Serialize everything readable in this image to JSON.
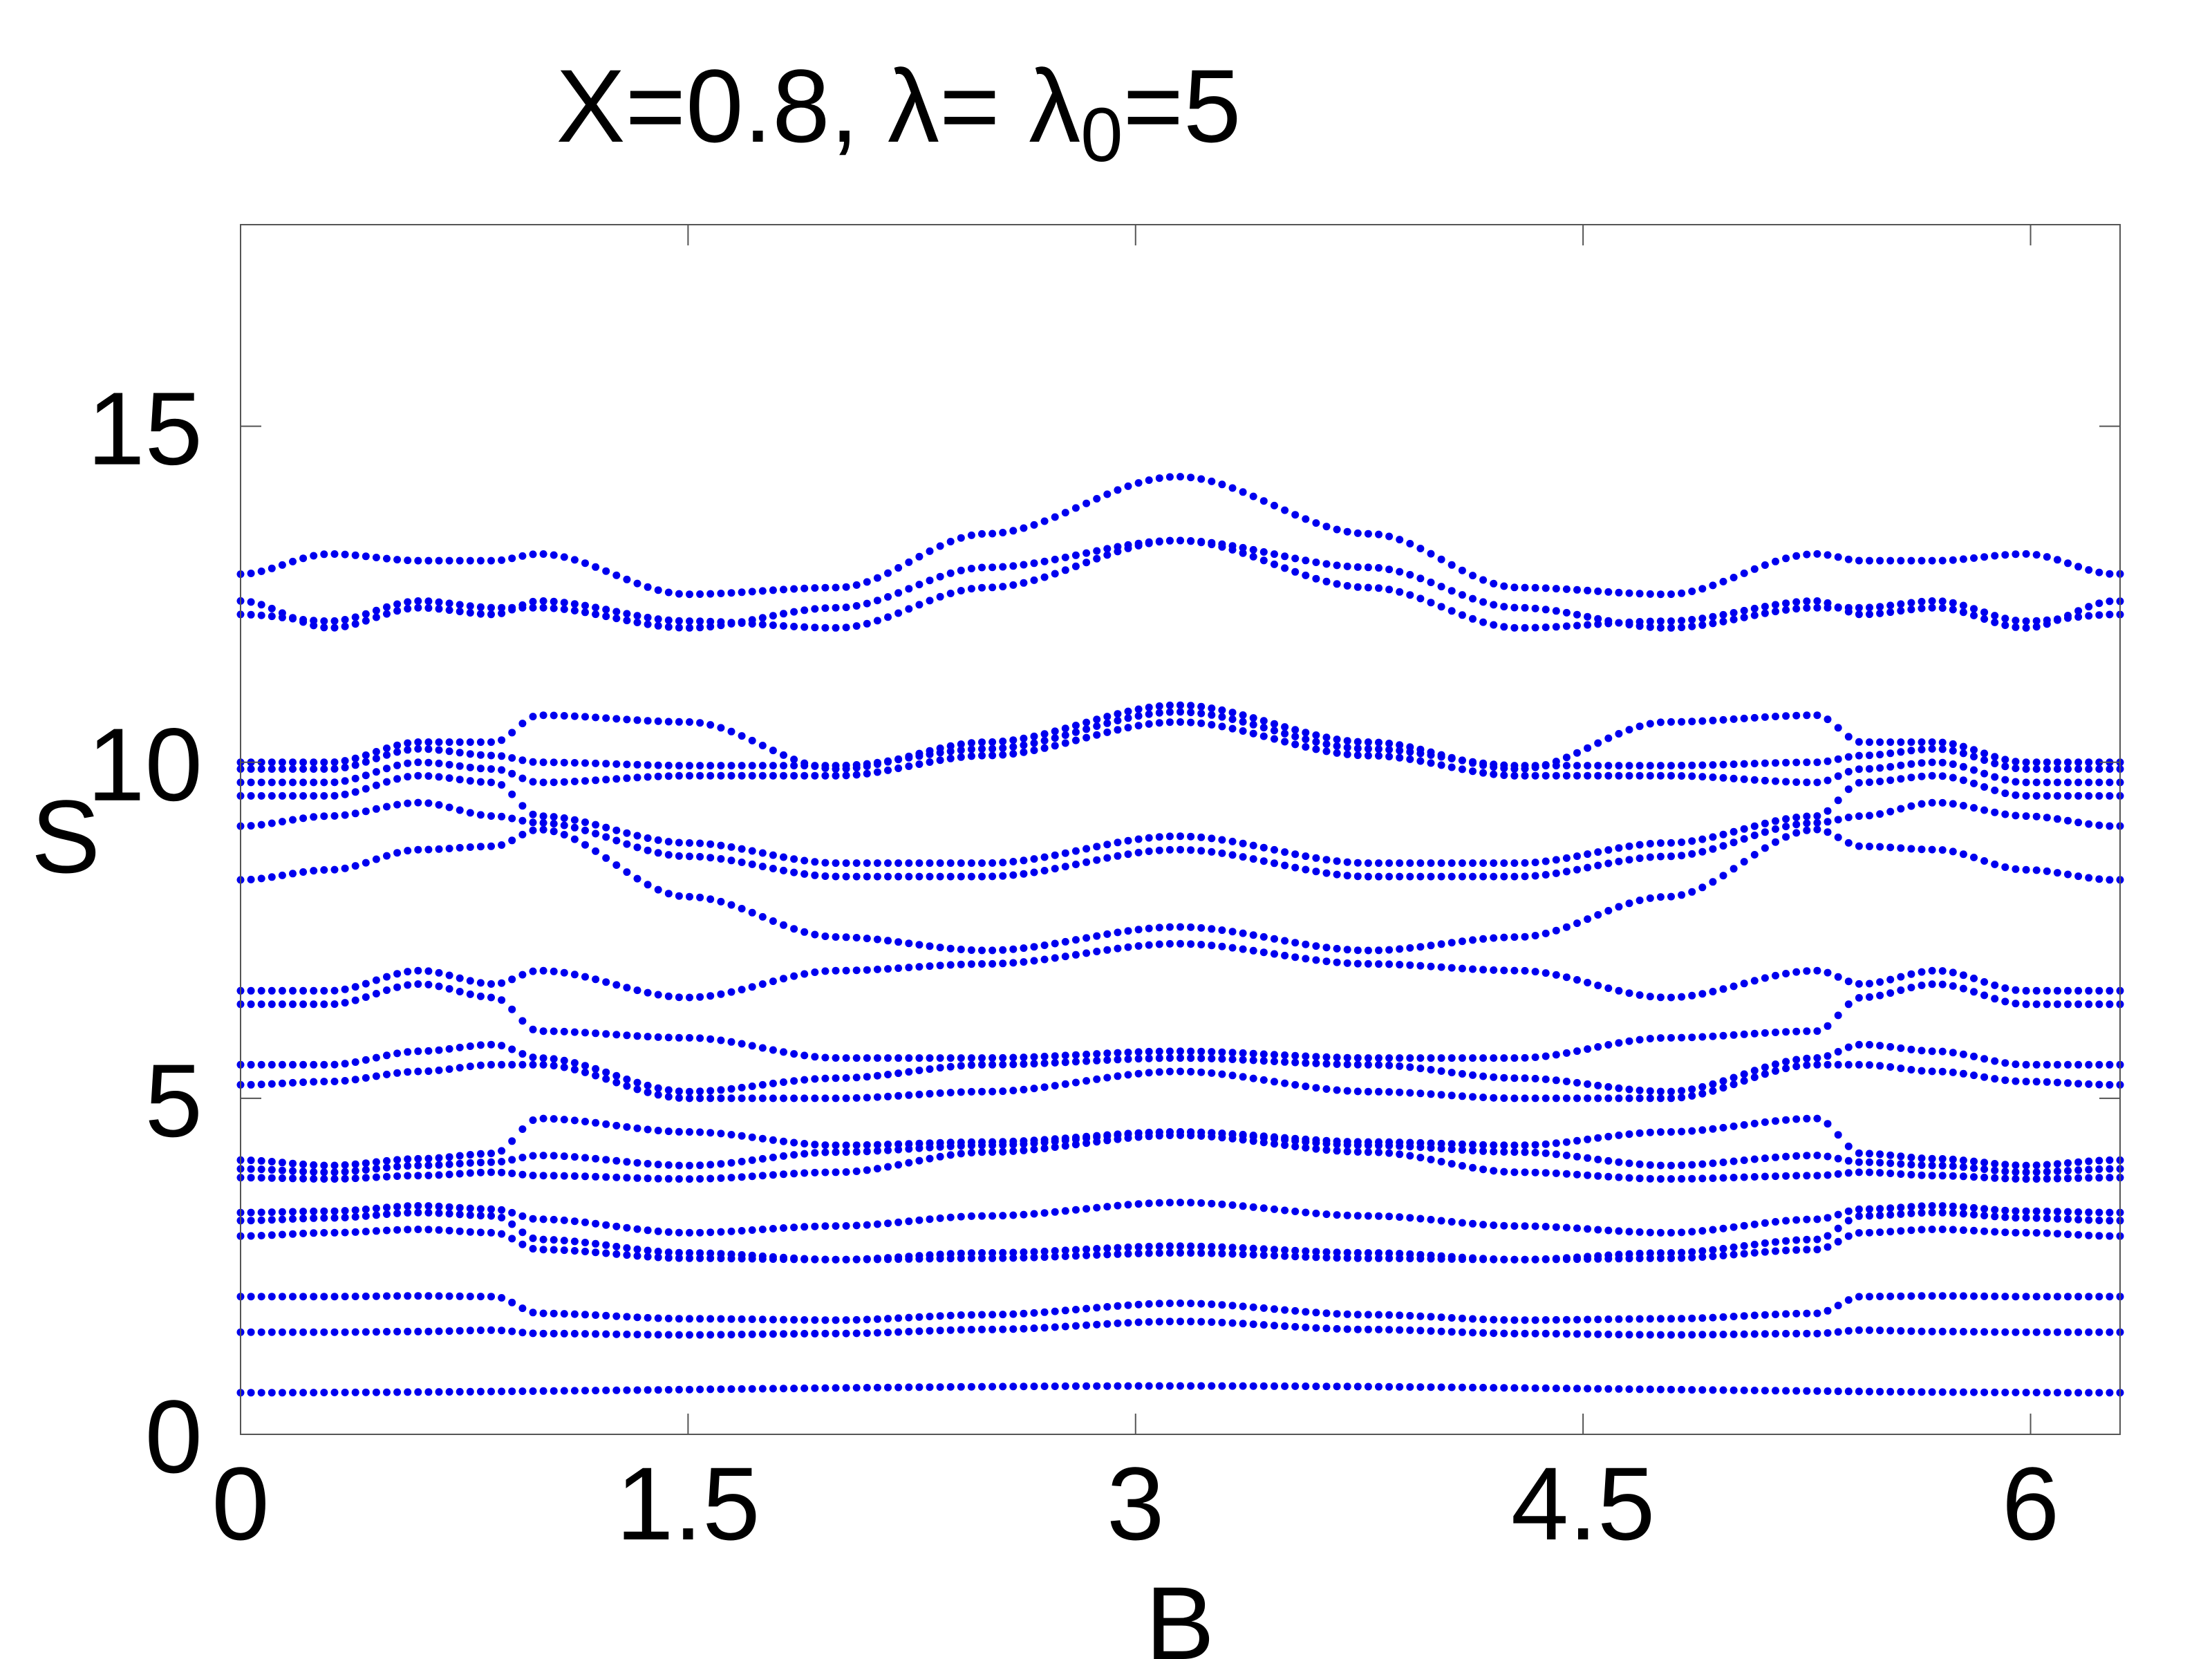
{
  "chart_data": {
    "type": "scatter",
    "title": {
      "prefix": "X=0.8, λ= λ",
      "subscript": "0",
      "suffix": "=5"
    },
    "xlabel": "B",
    "ylabel": "S",
    "xlim": [
      0,
      6.3
    ],
    "ylim": [
      0,
      18
    ],
    "xticks": [
      {
        "value": 0,
        "label": "0"
      },
      {
        "value": 1.5,
        "label": "1.5"
      },
      {
        "value": 3,
        "label": "3"
      },
      {
        "value": 4.5,
        "label": "4.5"
      },
      {
        "value": 6,
        "label": "6"
      }
    ],
    "yticks": [
      {
        "value": 0,
        "label": "0"
      },
      {
        "value": 5,
        "label": "5"
      },
      {
        "value": 10,
        "label": "10"
      },
      {
        "value": 15,
        "label": "15"
      }
    ],
    "grid": false,
    "marker_color": "#0000ee",
    "x_period": 6.2832,
    "x_step": 0.035,
    "bands": [
      {
        "x": [
          0,
          3.14159
        ],
        "y": [
          0.62,
          0.72
        ]
      },
      {
        "x": [
          0,
          0.3,
          0.6,
          0.85,
          1.0,
          1.5,
          2.0,
          2.5,
          3.14159
        ],
        "y": [
          1.52,
          1.52,
          1.53,
          1.55,
          1.5,
          1.48,
          1.5,
          1.56,
          1.68
        ]
      },
      {
        "x": [
          0,
          0.3,
          0.6,
          0.85,
          1.0,
          1.5,
          2.0,
          2.5,
          3.14159
        ],
        "y": [
          2.05,
          2.05,
          2.06,
          2.05,
          1.8,
          1.72,
          1.7,
          1.78,
          1.95
        ]
      },
      {
        "x": [
          0,
          0.3,
          0.6,
          0.85,
          1.0,
          1.5,
          2.0,
          2.5,
          3.14159
        ],
        "y": [
          2.95,
          3.0,
          3.05,
          3.0,
          2.75,
          2.62,
          2.6,
          2.7,
          2.8
        ]
      },
      {
        "x": [
          0,
          0.3,
          0.6,
          0.85,
          1.0,
          1.5,
          2.0,
          2.5,
          3.14159
        ],
        "y": [
          3.18,
          3.22,
          3.3,
          3.25,
          2.9,
          2.7,
          2.6,
          2.62,
          2.7
        ]
      },
      {
        "x": [
          0,
          0.3,
          0.6,
          0.85,
          1.0,
          1.5,
          2.0,
          2.5,
          3.14159
        ],
        "y": [
          3.3,
          3.32,
          3.4,
          3.35,
          3.2,
          3.0,
          3.1,
          3.25,
          3.45
        ]
      },
      {
        "x": [
          0,
          0.3,
          0.6,
          0.85,
          1.0,
          1.5,
          2.0,
          2.5,
          3.14159
        ],
        "y": [
          3.82,
          3.8,
          3.85,
          3.9,
          3.85,
          3.8,
          3.9,
          4.2,
          4.45
        ]
      },
      {
        "x": [
          0,
          0.3,
          0.6,
          0.85,
          1.0,
          1.5,
          2.0,
          2.5,
          3.14159
        ],
        "y": [
          3.95,
          3.9,
          4.0,
          4.05,
          4.15,
          4.0,
          4.2,
          4.3,
          4.5
        ]
      },
      {
        "x": [
          0,
          0.3,
          0.6,
          0.85,
          1.0,
          1.5,
          2.0,
          2.5,
          3.14159
        ],
        "y": [
          4.08,
          4.0,
          4.1,
          4.18,
          4.7,
          4.5,
          4.3,
          4.35,
          4.5
        ]
      },
      {
        "x": [
          0,
          0.3,
          0.6,
          0.85,
          1.0,
          1.5,
          2.0,
          2.5,
          3.14159
        ],
        "y": [
          5.2,
          5.25,
          5.4,
          5.5,
          5.5,
          5.0,
          5.0,
          5.1,
          5.4
        ]
      },
      {
        "x": [
          0,
          0.3,
          0.6,
          0.85,
          1.0,
          1.5,
          2.0,
          2.5,
          3.14159
        ],
        "y": [
          5.5,
          5.5,
          5.7,
          5.8,
          5.6,
          5.1,
          5.3,
          5.5,
          5.6
        ]
      },
      {
        "x": [
          0,
          0.3,
          0.6,
          0.85,
          1.0,
          1.5,
          2.0,
          2.5,
          3.14159
        ],
        "y": [
          6.4,
          6.4,
          6.7,
          6.5,
          6.0,
          5.9,
          5.6,
          5.6,
          5.7
        ]
      },
      {
        "x": [
          0,
          0.3,
          0.6,
          0.85,
          1.0,
          1.5,
          2.0,
          2.5,
          3.14159
        ],
        "y": [
          6.6,
          6.6,
          6.9,
          6.7,
          6.9,
          6.5,
          6.9,
          7.0,
          7.3
        ]
      },
      {
        "x": [
          0,
          0.3,
          0.6,
          0.85,
          1.0,
          1.5,
          2.0,
          2.5,
          3.14159
        ],
        "y": [
          8.25,
          8.4,
          8.7,
          8.75,
          9.0,
          8.0,
          7.4,
          7.2,
          7.55
        ]
      },
      {
        "x": [
          0,
          0.3,
          0.6,
          0.85,
          1.0,
          1.5,
          2.0,
          2.5,
          3.14159
        ],
        "y": [
          9.05,
          9.2,
          9.4,
          9.2,
          9.1,
          8.6,
          8.3,
          8.3,
          8.7
        ]
      },
      {
        "x": [
          0,
          0.3,
          0.6,
          0.85,
          1.0,
          1.5,
          2.0,
          2.5,
          3.14159
        ],
        "y": [
          9.5,
          9.5,
          9.8,
          9.7,
          9.2,
          8.8,
          8.5,
          8.5,
          8.9
        ]
      },
      {
        "x": [
          0,
          0.3,
          0.6,
          0.85,
          1.0,
          1.5,
          2.0,
          2.5,
          3.14159
        ],
        "y": [
          9.7,
          9.7,
          10.0,
          9.9,
          9.7,
          9.8,
          9.8,
          10.1,
          10.6
        ]
      },
      {
        "x": [
          0,
          0.3,
          0.6,
          0.85,
          1.0,
          1.5,
          2.0,
          2.5,
          3.14159
        ],
        "y": [
          9.9,
          9.9,
          10.2,
          10.1,
          10.0,
          9.95,
          9.95,
          10.2,
          10.75
        ]
      },
      {
        "x": [
          0,
          0.3,
          0.6,
          0.85,
          1.0,
          1.5,
          2.0,
          2.5,
          3.14159
        ],
        "y": [
          10.0,
          10.0,
          10.3,
          10.3,
          10.7,
          10.6,
          9.9,
          10.3,
          10.85
        ]
      },
      {
        "x": [
          0,
          0.3,
          0.6,
          0.85,
          1.0,
          1.5,
          2.0,
          2.5,
          3.14159
        ],
        "y": [
          12.2,
          12.1,
          12.4,
          12.3,
          12.3,
          12.0,
          12.3,
          12.9,
          13.3
        ]
      },
      {
        "x": [
          0,
          0.3,
          0.6,
          0.85,
          1.0,
          1.5,
          2.0,
          2.5,
          3.14159
        ],
        "y": [
          12.4,
          12.0,
          12.3,
          12.2,
          12.4,
          12.1,
          12.0,
          12.6,
          13.3
        ]
      },
      {
        "x": [
          0,
          0.3,
          0.6,
          0.85,
          1.0,
          1.5,
          2.0,
          2.5,
          3.14159
        ],
        "y": [
          12.8,
          13.1,
          13.0,
          13.0,
          13.1,
          12.5,
          12.6,
          13.4,
          14.25
        ]
      }
    ]
  }
}
